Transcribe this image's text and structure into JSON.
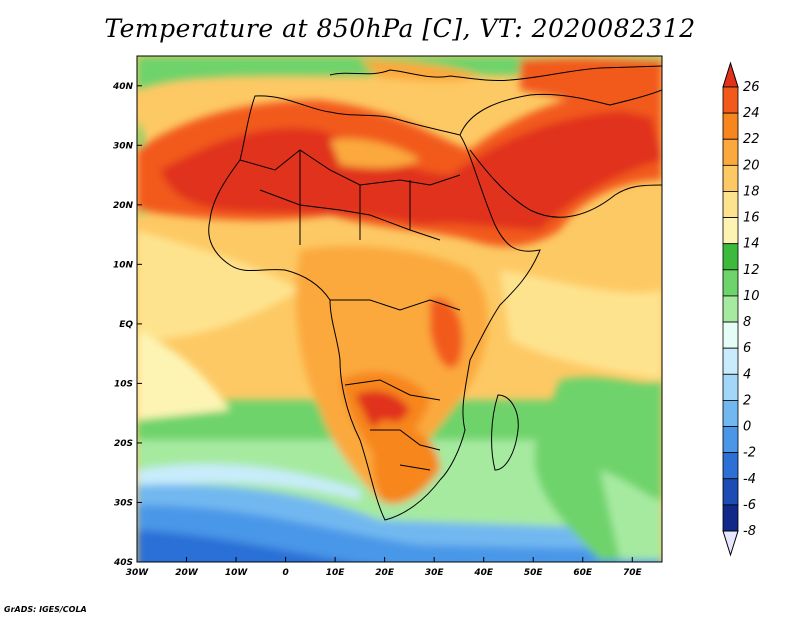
{
  "title": "Temperature at 850hPa [C], VT: 2020082312",
  "credit": "GrADS: IGES/COLA",
  "map": {
    "lon_range": [
      -30,
      76
    ],
    "lat_range": [
      -40,
      45
    ],
    "lon_ticks": [
      {
        "value": -30,
        "label": "30W"
      },
      {
        "value": -20,
        "label": "20W"
      },
      {
        "value": -10,
        "label": "10W"
      },
      {
        "value": 0,
        "label": "0"
      },
      {
        "value": 10,
        "label": "10E"
      },
      {
        "value": 20,
        "label": "20E"
      },
      {
        "value": 30,
        "label": "30E"
      },
      {
        "value": 40,
        "label": "40E"
      },
      {
        "value": 50,
        "label": "50E"
      },
      {
        "value": 60,
        "label": "60E"
      },
      {
        "value": 70,
        "label": "70E"
      }
    ],
    "lat_ticks": [
      {
        "value": 40,
        "label": "40N"
      },
      {
        "value": 30,
        "label": "30N"
      },
      {
        "value": 20,
        "label": "20N"
      },
      {
        "value": 10,
        "label": "10N"
      },
      {
        "value": 0,
        "label": "EQ"
      },
      {
        "value": -10,
        "label": "10S"
      },
      {
        "value": -20,
        "label": "20S"
      },
      {
        "value": -30,
        "label": "30S"
      },
      {
        "value": -40,
        "label": "40S"
      }
    ]
  },
  "colorbar": {
    "labels": [
      "26",
      "24",
      "22",
      "20",
      "18",
      "16",
      "14",
      "12",
      "10",
      "8",
      "6",
      "4",
      "2",
      "0",
      "-2",
      "-4",
      "-6",
      "-8"
    ],
    "colors": [
      "#e0331a",
      "#f25a1c",
      "#f7861f",
      "#fba93c",
      "#fdc964",
      "#fee38e",
      "#fdf4b4",
      "#3cba3c",
      "#6ed36a",
      "#a6eaa0",
      "#e6fcf7",
      "#c8ecfb",
      "#a2d7f7",
      "#72b8f0",
      "#4a97e8",
      "#2c70d6",
      "#1d4db4",
      "#112a8a",
      "#1a1a6e"
    ]
  }
}
